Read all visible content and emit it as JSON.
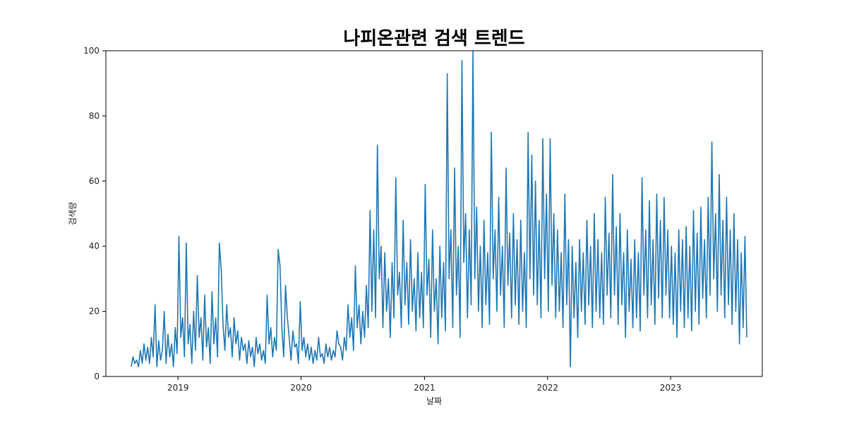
{
  "chart_data": {
    "type": "line",
    "title": "나피온관련 검색 트렌드",
    "xlabel": "날짜",
    "ylabel": "검색량",
    "xlim": [
      "2018-06-01",
      "2023-09-30"
    ],
    "ylim": [
      0,
      100
    ],
    "x_ticks": [
      "2019",
      "2020",
      "2021",
      "2022",
      "2023"
    ],
    "y_ticks": [
      0,
      20,
      40,
      60,
      80,
      100
    ],
    "grid": false,
    "line_color": "#1f77b4",
    "series": [
      {
        "x_start": "2018-08-15",
        "x_end": "2023-08-15",
        "step": "week",
        "values": [
          3,
          6,
          4,
          5,
          3,
          8,
          4,
          10,
          5,
          9,
          4,
          12,
          6,
          22,
          3,
          11,
          5,
          8,
          20,
          4,
          13,
          6,
          10,
          3,
          15,
          7,
          43,
          12,
          18,
          6,
          41,
          10,
          16,
          4,
          20,
          8,
          31,
          12,
          18,
          5,
          25,
          9,
          15,
          4,
          26,
          10,
          18,
          6,
          41,
          33,
          16,
          8,
          22,
          12,
          15,
          6,
          18,
          10,
          14,
          5,
          12,
          8,
          10,
          4,
          11,
          6,
          9,
          3,
          12,
          7,
          10,
          5,
          8,
          4,
          25,
          10,
          15,
          6,
          12,
          8,
          39,
          34,
          15,
          6,
          28,
          18,
          12,
          5,
          14,
          9,
          10,
          4,
          23,
          8,
          12,
          6,
          10,
          5,
          9,
          4,
          8,
          5,
          12,
          6,
          7,
          4,
          10,
          6,
          9,
          5,
          8,
          6,
          14,
          10,
          9,
          5,
          12,
          8,
          22,
          12,
          18,
          8,
          34,
          15,
          22,
          10,
          20,
          12,
          28,
          15,
          51,
          20,
          45,
          18,
          71,
          30,
          40,
          15,
          38,
          20,
          30,
          12,
          35,
          18,
          61,
          25,
          32,
          15,
          48,
          22,
          35,
          16,
          42,
          20,
          30,
          14,
          38,
          18,
          32,
          15,
          59,
          25,
          36,
          12,
          45,
          20,
          30,
          10,
          40,
          18,
          35,
          14,
          93,
          30,
          45,
          15,
          64,
          25,
          40,
          12,
          97,
          35,
          50,
          18,
          45,
          22,
          100,
          30,
          52,
          20,
          40,
          15,
          48,
          22,
          38,
          16,
          75,
          30,
          45,
          20,
          55,
          25,
          40,
          15,
          64,
          28,
          44,
          18,
          50,
          22,
          42,
          16,
          48,
          20,
          38,
          15,
          75,
          30,
          68,
          25,
          60,
          22,
          48,
          18,
          73,
          30,
          56,
          20,
          73,
          28,
          50,
          18,
          45,
          20,
          38,
          15,
          56,
          22,
          42,
          3,
          40,
          18,
          35,
          12,
          42,
          20,
          38,
          16,
          48,
          22,
          40,
          15,
          50,
          20,
          42,
          18,
          38,
          16,
          55,
          25,
          44,
          18,
          62,
          25,
          46,
          16,
          50,
          22,
          38,
          12,
          45,
          20,
          36,
          15,
          42,
          18,
          38,
          14,
          61,
          25,
          45,
          18,
          54,
          22,
          42,
          16,
          56,
          24,
          48,
          18,
          55,
          25,
          45,
          18,
          40,
          16,
          38,
          12,
          45,
          20,
          42,
          15,
          46,
          18,
          40,
          14,
          51,
          20,
          44,
          16,
          52,
          24,
          42,
          18,
          55,
          25,
          72,
          30,
          50,
          20,
          62,
          25,
          48,
          18,
          55,
          22,
          45,
          16,
          50,
          20,
          42,
          10,
          38,
          15,
          43,
          12
        ]
      }
    ]
  }
}
